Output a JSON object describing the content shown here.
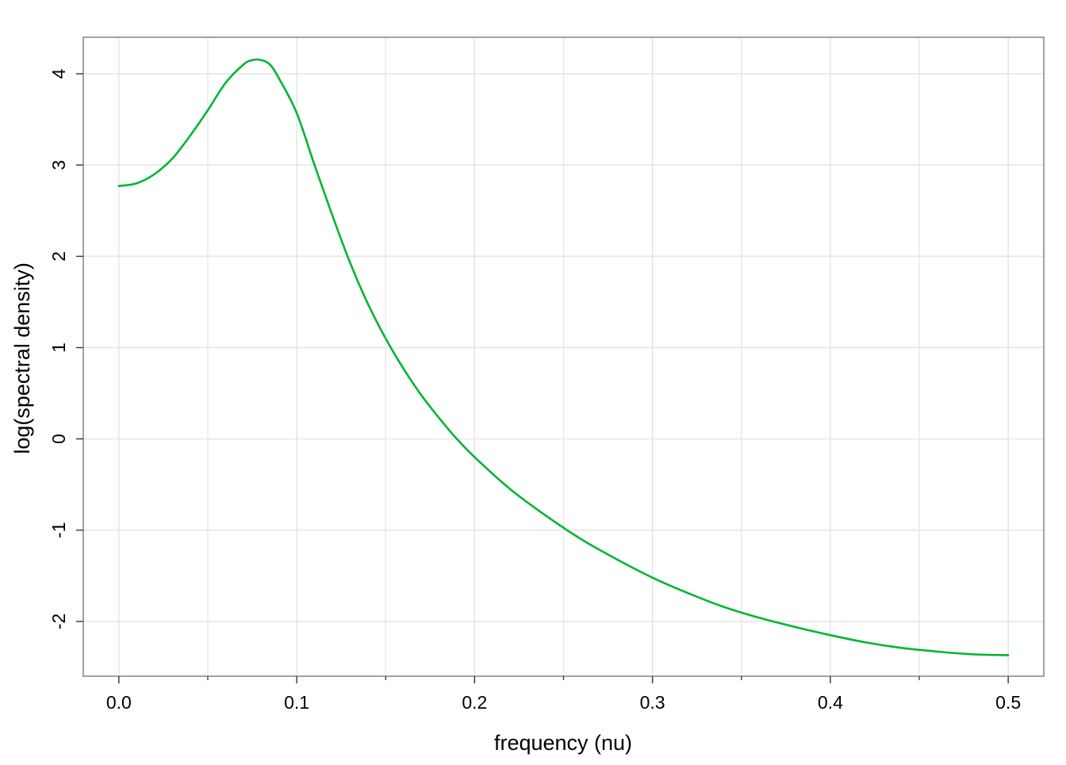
{
  "chart_data": {
    "type": "line",
    "title": "",
    "xlabel": "frequency (nu)",
    "ylabel": "log(spectral density)",
    "xlim": [
      -0.02,
      0.52
    ],
    "ylim": [
      -2.6,
      4.4
    ],
    "x_ticks": [
      0.0,
      0.1,
      0.2,
      0.3,
      0.4,
      0.5
    ],
    "x_tick_labels": [
      "0.0",
      "0.1",
      "0.2",
      "0.3",
      "0.4",
      "0.5"
    ],
    "x_minor_ticks": [
      0.05,
      0.15,
      0.25,
      0.35,
      0.45
    ],
    "y_ticks": [
      -2,
      -1,
      0,
      1,
      2,
      3,
      4
    ],
    "y_tick_labels": [
      "-2",
      "-1",
      "0",
      "1",
      "2",
      "3",
      "4"
    ],
    "grid": true,
    "legend": "none",
    "colors": {
      "line": "#00b632",
      "grid": "#e6e6e6",
      "frame": "#8c8c8c"
    },
    "series": [
      {
        "x": [
          0.0,
          0.01,
          0.02,
          0.03,
          0.04,
          0.05,
          0.06,
          0.07,
          0.075,
          0.08,
          0.085,
          0.09,
          0.1,
          0.11,
          0.12,
          0.13,
          0.14,
          0.15,
          0.16,
          0.17,
          0.18,
          0.19,
          0.2,
          0.22,
          0.24,
          0.26,
          0.28,
          0.3,
          0.32,
          0.34,
          0.36,
          0.38,
          0.4,
          0.42,
          0.44,
          0.46,
          0.48,
          0.5
        ],
        "values": [
          2.77,
          2.8,
          2.9,
          3.07,
          3.32,
          3.6,
          3.9,
          4.1,
          4.15,
          4.15,
          4.1,
          3.95,
          3.57,
          3.0,
          2.45,
          1.93,
          1.48,
          1.1,
          0.77,
          0.48,
          0.23,
          0.0,
          -0.2,
          -0.55,
          -0.84,
          -1.1,
          -1.32,
          -1.52,
          -1.69,
          -1.84,
          -1.96,
          -2.06,
          -2.15,
          -2.23,
          -2.29,
          -2.33,
          -2.36,
          -2.37
        ]
      }
    ]
  }
}
